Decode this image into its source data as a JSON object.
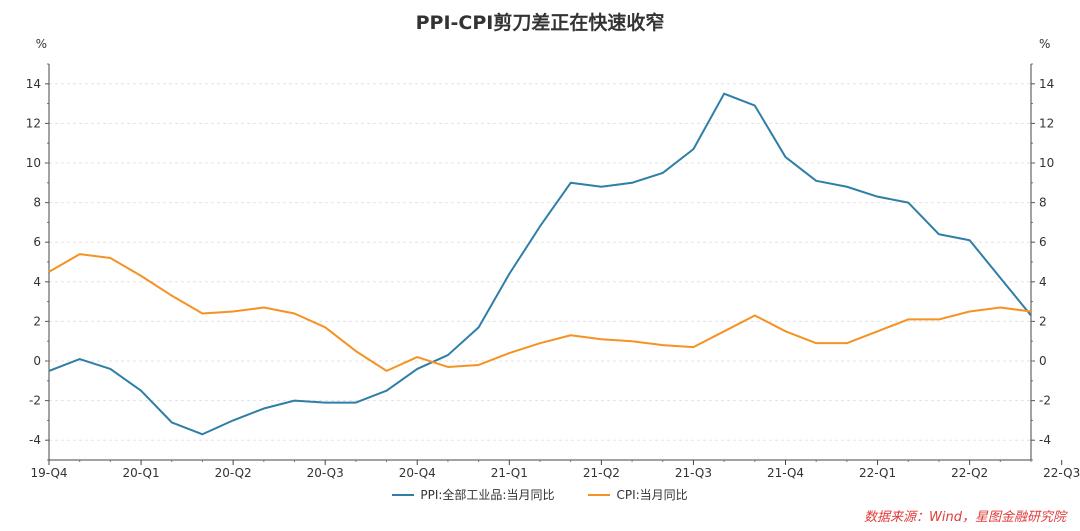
{
  "chart_data": {
    "type": "line",
    "title": "PPI-CPI剪刀差正在快速收窄",
    "y_unit_left": "%",
    "y_unit_right": "%",
    "ylim": [
      -5,
      15
    ],
    "y_ticks": [
      -4,
      -2,
      0,
      2,
      4,
      6,
      8,
      10,
      12,
      14
    ],
    "x_ticks": [
      "19-Q4",
      "20-Q1",
      "20-Q2",
      "20-Q3",
      "20-Q4",
      "21-Q1",
      "21-Q2",
      "21-Q3",
      "21-Q4",
      "22-Q1",
      "22-Q2",
      "22-Q3"
    ],
    "series": [
      {
        "name": "PPI:全部工业品:当月同比",
        "color": "#2e7ea6",
        "values": [
          -0.5,
          0.1,
          -0.4,
          -1.5,
          -3.1,
          -3.7,
          -3.0,
          -2.4,
          -2.0,
          -2.1,
          -2.1,
          -1.5,
          -0.4,
          0.3,
          1.7,
          4.4,
          6.8,
          9.0,
          8.8,
          9.0,
          9.5,
          10.7,
          13.5,
          12.9,
          10.3,
          9.1,
          8.8,
          8.3,
          8.0,
          6.4,
          6.1,
          4.2,
          2.3
        ]
      },
      {
        "name": "CPI:当月同比",
        "color": "#f59223",
        "values": [
          4.5,
          5.4,
          5.2,
          4.3,
          3.3,
          2.4,
          2.5,
          2.7,
          2.4,
          1.7,
          0.5,
          -0.5,
          0.2,
          -0.3,
          -0.2,
          0.4,
          0.9,
          1.3,
          1.1,
          1.0,
          0.8,
          0.7,
          1.5,
          2.3,
          1.5,
          0.9,
          0.9,
          1.5,
          2.1,
          2.1,
          2.5,
          2.7,
          2.5
        ]
      }
    ],
    "grid": true,
    "legend_position": "bottom-center"
  },
  "source_note": "数据来源：Wind，星图金融研究院"
}
